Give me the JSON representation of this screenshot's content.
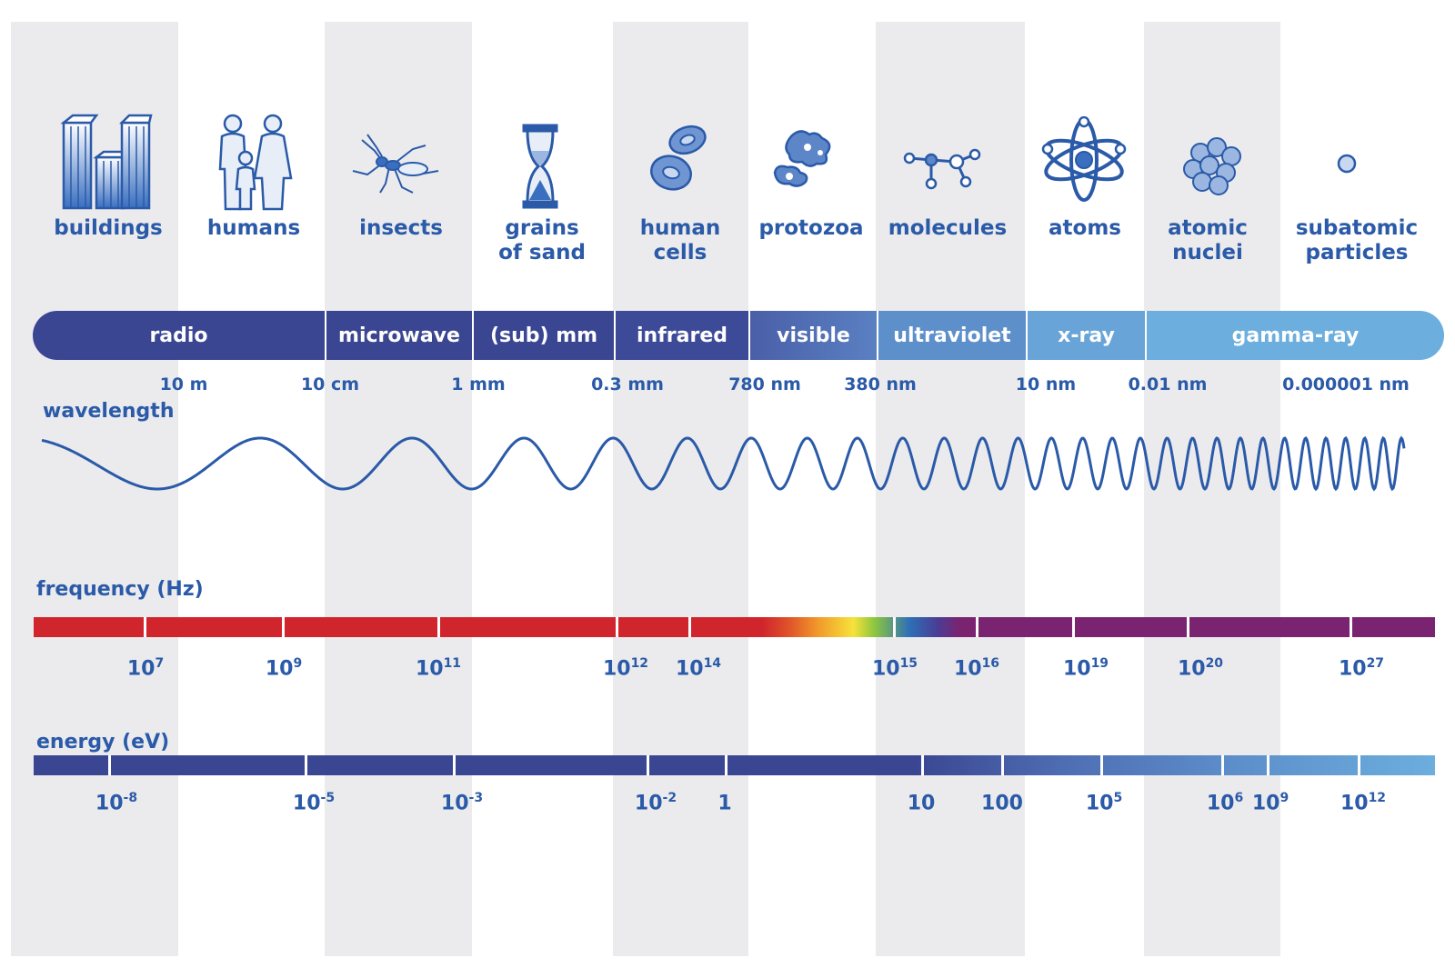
{
  "objects": [
    {
      "label": "buildings",
      "icon": "buildings-icon"
    },
    {
      "label": "humans",
      "icon": "humans-icon"
    },
    {
      "label": "insects",
      "icon": "insect-icon"
    },
    {
      "label": "grains of sand",
      "icon": "hourglass-icon"
    },
    {
      "label": "human cells",
      "icon": "cells-icon"
    },
    {
      "label": "protozoa",
      "icon": "protozoa-icon"
    },
    {
      "label": "molecules",
      "icon": "molecule-icon"
    },
    {
      "label": "atoms",
      "icon": "atom-icon"
    },
    {
      "label": "atomic nuclei",
      "icon": "nucleus-icon"
    },
    {
      "label": "subatomic particles",
      "icon": "particle-icon"
    }
  ],
  "bands": [
    {
      "label": "radio",
      "color": "#3b4693"
    },
    {
      "label": "microwave",
      "color": "#3b4693"
    },
    {
      "label": "(sub) mm",
      "color": "#3b4693"
    },
    {
      "label": "infrared",
      "color": "#3d4a98"
    },
    {
      "label": "visible",
      "color": "#4f6fb4"
    },
    {
      "label": "ultraviolet",
      "color": "#5d8fcb"
    },
    {
      "label": "x-ray",
      "color": "#68a4d8"
    },
    {
      "label": "gamma-ray",
      "color": "#6caedd"
    }
  ],
  "wavelength": {
    "title": "wavelength",
    "labels": [
      "10 m",
      "10 cm",
      "1 mm",
      "0.3 mm",
      "780 nm",
      "380 nm",
      "10 nm",
      "0.01 nm",
      "0.000001 nm"
    ]
  },
  "frequency": {
    "title": "frequency (Hz)",
    "labels": [
      {
        "base": "10",
        "exp": "7"
      },
      {
        "base": "10",
        "exp": "9"
      },
      {
        "base": "10",
        "exp": "11"
      },
      {
        "base": "10",
        "exp": "12"
      },
      {
        "base": "10",
        "exp": "14"
      },
      {
        "base": "10",
        "exp": "15"
      },
      {
        "base": "10",
        "exp": "16"
      },
      {
        "base": "10",
        "exp": "19"
      },
      {
        "base": "10",
        "exp": "20"
      },
      {
        "base": "10",
        "exp": "27"
      }
    ]
  },
  "energy": {
    "title": "energy (eV)",
    "labels": [
      {
        "base": "10",
        "exp": "-8"
      },
      {
        "base": "10",
        "exp": "-5"
      },
      {
        "base": "10",
        "exp": "-3"
      },
      {
        "base": "10",
        "exp": "-2"
      },
      {
        "base": "1",
        "exp": ""
      },
      {
        "base": "10",
        "exp": ""
      },
      {
        "base": "100",
        "exp": ""
      },
      {
        "base": "10",
        "exp": "5"
      },
      {
        "base": "10",
        "exp": "6"
      },
      {
        "base": "10",
        "exp": "9"
      },
      {
        "base": "10",
        "exp": "12"
      }
    ]
  },
  "colors": {
    "text": "#2a5aa8",
    "stripe": "#ebebed",
    "frequency_red": "#d0252c",
    "frequency_purple": "#7a2471",
    "energy_dark": "#3b4693",
    "energy_light": "#6caedd"
  }
}
